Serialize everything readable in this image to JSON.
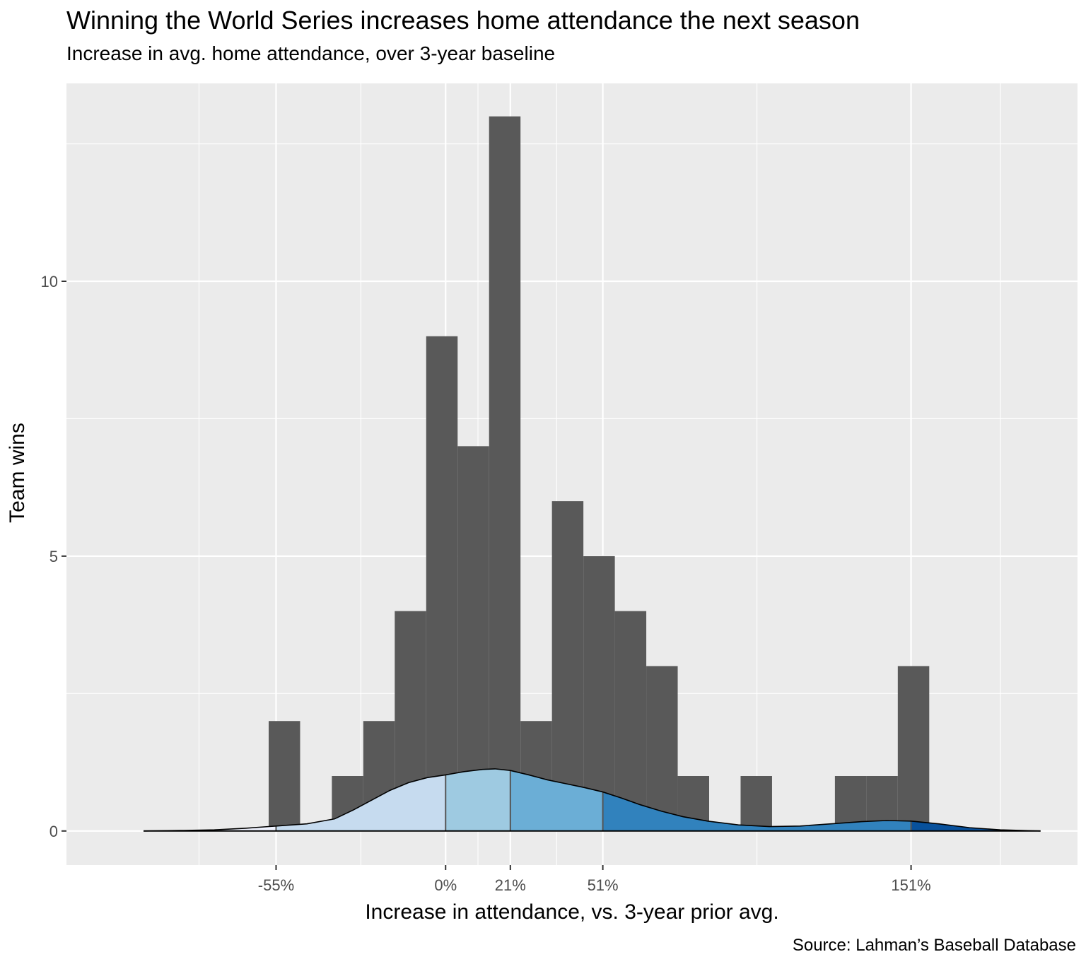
{
  "chart_data": {
    "type": "bar",
    "title": "Winning the World Series increases home attendance the next season",
    "subtitle": "Increase in avg. home attendance, over 3-year baseline",
    "caption": "Source: Lahman’s Baseball Database",
    "xlabel": "Increase in attendance, vs. 3-year prior avg.",
    "ylabel": "Team wins",
    "x_ticks": [
      {
        "value": -55,
        "label": "-55%"
      },
      {
        "value": 0,
        "label": "0%"
      },
      {
        "value": 21,
        "label": "21%"
      },
      {
        "value": 51,
        "label": "51%"
      },
      {
        "value": 151,
        "label": "151%"
      }
    ],
    "y_ticks": [
      {
        "value": 0,
        "label": "0"
      },
      {
        "value": 5,
        "label": "5"
      },
      {
        "value": 10,
        "label": "10"
      }
    ],
    "xlim": [
      -123,
      205
    ],
    "ylim": [
      -0.62,
      13.6
    ],
    "grid": true,
    "histogram": {
      "bin_width": 10.2,
      "bins": [
        {
          "start": -57.4,
          "end": -47.2,
          "count": 2
        },
        {
          "start": -36.9,
          "end": -26.7,
          "count": 1
        },
        {
          "start": -26.7,
          "end": -16.5,
          "count": 2
        },
        {
          "start": -16.5,
          "end": -6.3,
          "count": 4
        },
        {
          "start": -6.3,
          "end": 3.9,
          "count": 9
        },
        {
          "start": 3.9,
          "end": 14.1,
          "count": 7
        },
        {
          "start": 14.1,
          "end": 24.3,
          "count": 13
        },
        {
          "start": 24.3,
          "end": 34.5,
          "count": 2
        },
        {
          "start": 34.5,
          "end": 44.7,
          "count": 6
        },
        {
          "start": 44.7,
          "end": 54.9,
          "count": 5
        },
        {
          "start": 54.9,
          "end": 65.1,
          "count": 4
        },
        {
          "start": 65.1,
          "end": 75.3,
          "count": 3
        },
        {
          "start": 75.3,
          "end": 85.5,
          "count": 1
        },
        {
          "start": 95.7,
          "end": 105.9,
          "count": 1
        },
        {
          "start": 126.3,
          "end": 136.5,
          "count": 1
        },
        {
          "start": 136.5,
          "end": 146.7,
          "count": 1
        },
        {
          "start": 146.7,
          "end": 156.9,
          "count": 3
        }
      ]
    },
    "density": {
      "quantile_breaks": [
        -55,
        0,
        21,
        51,
        151
      ],
      "fill_colors": [
        "#eff3ff",
        "#c6dbef",
        "#9ecae1",
        "#6baed6",
        "#3182bd",
        "#08519c"
      ],
      "points": [
        {
          "x": -98,
          "y": 0.0
        },
        {
          "x": -85,
          "y": 0.01
        },
        {
          "x": -75,
          "y": 0.02
        },
        {
          "x": -65,
          "y": 0.05
        },
        {
          "x": -55,
          "y": 0.09
        },
        {
          "x": -45,
          "y": 0.13
        },
        {
          "x": -36,
          "y": 0.22
        },
        {
          "x": -30,
          "y": 0.38
        },
        {
          "x": -24,
          "y": 0.56
        },
        {
          "x": -18,
          "y": 0.74
        },
        {
          "x": -12,
          "y": 0.88
        },
        {
          "x": -6,
          "y": 0.97
        },
        {
          "x": 0,
          "y": 1.02
        },
        {
          "x": 6,
          "y": 1.08
        },
        {
          "x": 12,
          "y": 1.12
        },
        {
          "x": 16,
          "y": 1.13
        },
        {
          "x": 21,
          "y": 1.1
        },
        {
          "x": 27,
          "y": 1.02
        },
        {
          "x": 33,
          "y": 0.93
        },
        {
          "x": 39,
          "y": 0.86
        },
        {
          "x": 45,
          "y": 0.79
        },
        {
          "x": 51,
          "y": 0.71
        },
        {
          "x": 57,
          "y": 0.6
        },
        {
          "x": 63,
          "y": 0.48
        },
        {
          "x": 70,
          "y": 0.36
        },
        {
          "x": 77,
          "y": 0.26
        },
        {
          "x": 85,
          "y": 0.18
        },
        {
          "x": 95,
          "y": 0.11
        },
        {
          "x": 105,
          "y": 0.08
        },
        {
          "x": 115,
          "y": 0.09
        },
        {
          "x": 125,
          "y": 0.13
        },
        {
          "x": 135,
          "y": 0.17
        },
        {
          "x": 143,
          "y": 0.19
        },
        {
          "x": 151,
          "y": 0.18
        },
        {
          "x": 160,
          "y": 0.13
        },
        {
          "x": 170,
          "y": 0.06
        },
        {
          "x": 180,
          "y": 0.02
        },
        {
          "x": 190,
          "y": 0.005
        },
        {
          "x": 193,
          "y": 0.0
        }
      ]
    }
  },
  "colors": {
    "panel_background": "#ebebeb",
    "grid_major": "#ffffff",
    "bar_fill": "#595959",
    "tick_text": "#4d4d4d"
  }
}
